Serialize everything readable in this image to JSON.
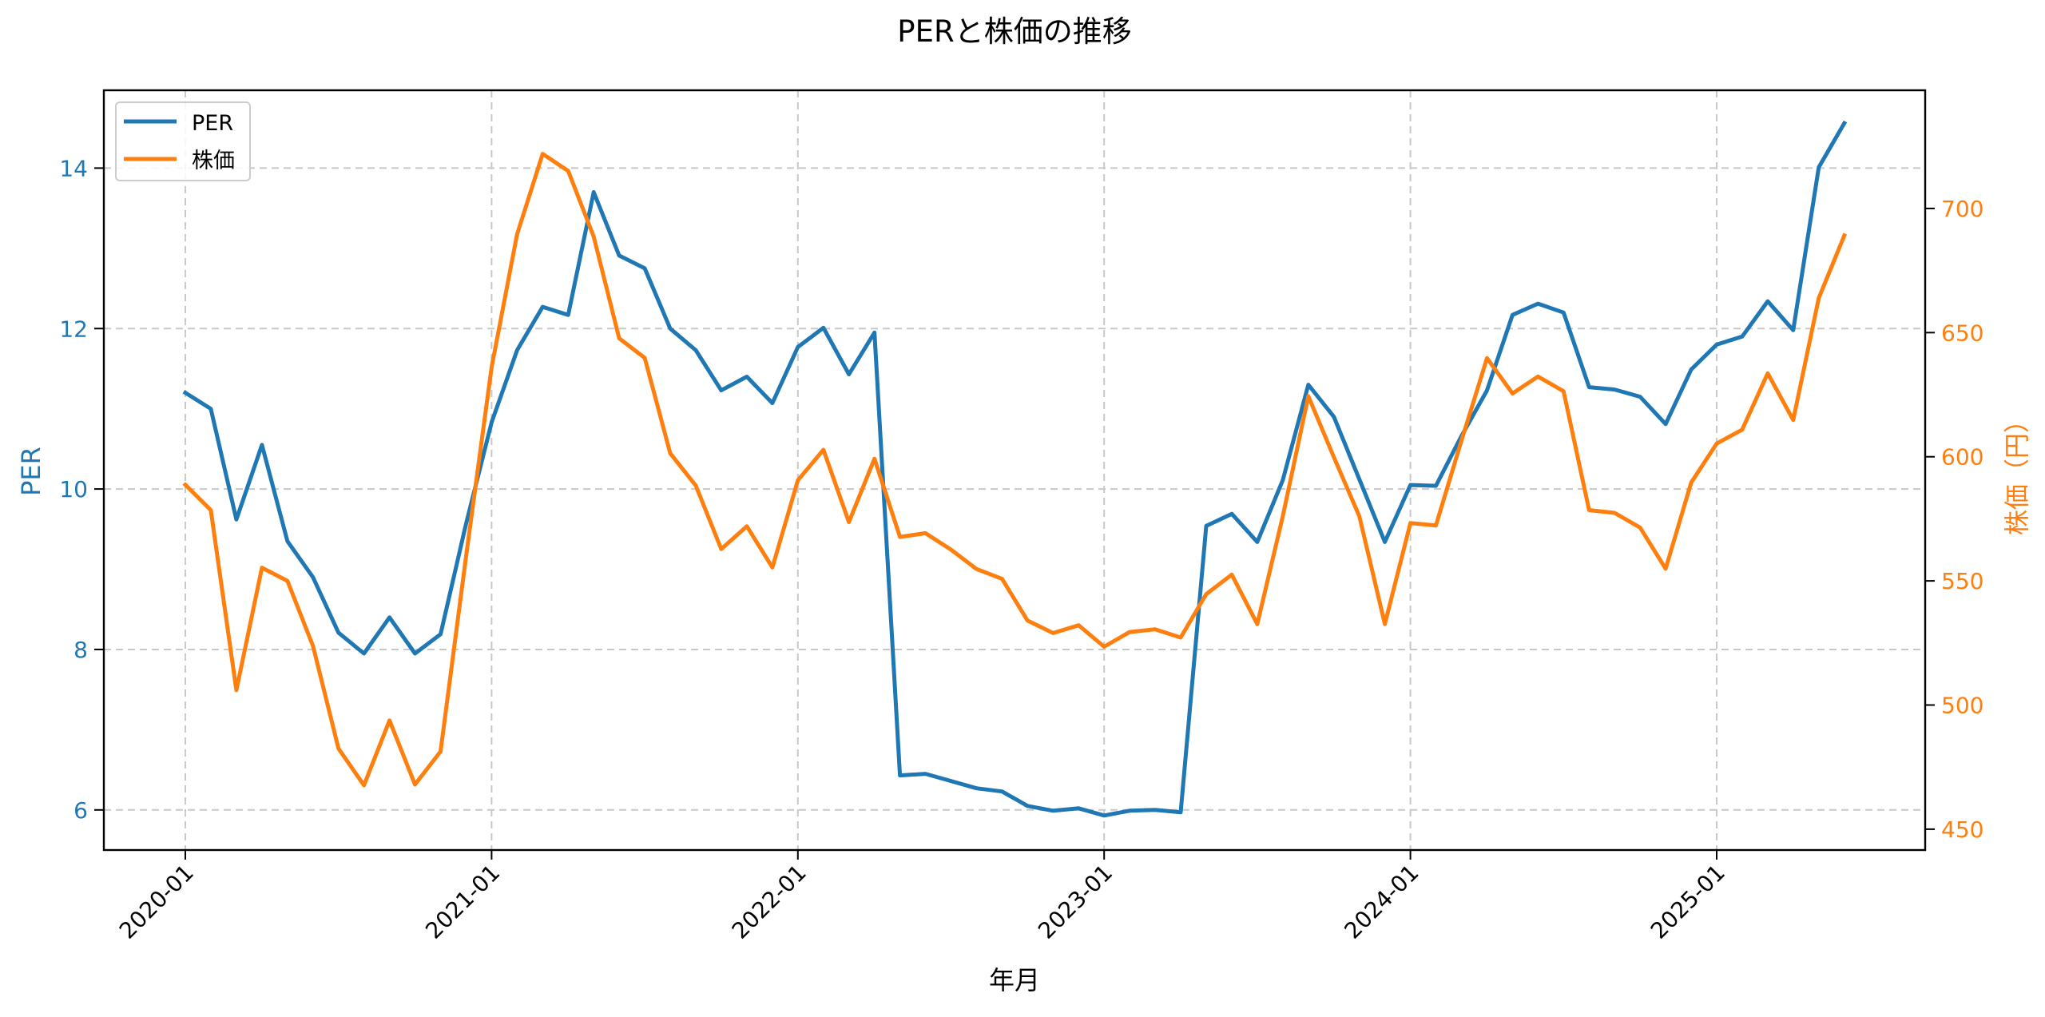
{
  "chart_data": {
    "type": "line",
    "title": "PERと株価の推移",
    "xlabel": "年月",
    "ylabel": "PER",
    "ylabel_right": "株価（円）",
    "x": [
      "2020-01",
      "2020-02",
      "2020-03",
      "2020-04",
      "2020-05",
      "2020-06",
      "2020-07",
      "2020-08",
      "2020-09",
      "2020-10",
      "2020-11",
      "2020-12",
      "2021-01",
      "2021-02",
      "2021-03",
      "2021-04",
      "2021-05",
      "2021-06",
      "2021-07",
      "2021-08",
      "2021-09",
      "2021-10",
      "2021-11",
      "2021-12",
      "2022-01",
      "2022-02",
      "2022-03",
      "2022-04",
      "2022-05",
      "2022-06",
      "2022-07",
      "2022-08",
      "2022-09",
      "2022-10",
      "2022-11",
      "2022-12",
      "2023-01",
      "2023-02",
      "2023-03",
      "2023-04",
      "2023-05",
      "2023-06",
      "2023-07",
      "2023-08",
      "2023-09",
      "2023-10",
      "2023-11",
      "2023-12",
      "2024-01",
      "2024-02",
      "2024-03",
      "2024-04",
      "2024-05",
      "2024-06",
      "2024-07",
      "2024-08",
      "2024-09",
      "2024-10",
      "2024-11",
      "2024-12",
      "2025-01",
      "2025-02",
      "2025-03",
      "2025-04",
      "2025-05",
      "2025-06"
    ],
    "series": [
      {
        "name": "PER",
        "axis": "left",
        "color": "#1f77b4",
        "values": [
          11.2,
          11.0,
          9.62,
          10.55,
          9.35,
          8.9,
          8.21,
          7.95,
          8.4,
          7.95,
          8.19,
          9.57,
          10.83,
          11.73,
          12.27,
          12.17,
          13.7,
          12.91,
          12.75,
          12.0,
          11.73,
          11.23,
          11.4,
          11.07,
          11.77,
          12.01,
          11.43,
          11.95,
          6.43,
          6.45,
          6.36,
          6.27,
          6.23,
          6.05,
          5.99,
          6.02,
          5.93,
          5.99,
          6.0,
          5.97,
          9.54,
          9.69,
          9.34,
          10.11,
          11.3,
          10.9,
          10.12,
          9.34,
          10.05,
          10.04,
          10.66,
          11.23,
          12.17,
          12.31,
          12.2,
          11.27,
          11.24,
          11.15,
          10.81,
          11.49,
          11.8,
          11.9,
          12.34,
          11.98,
          14.01,
          14.56
        ]
      },
      {
        "name": "株価",
        "axis": "right",
        "color": "#ff7f0e",
        "values": [
          588.7,
          578.5,
          506,
          555.3,
          550,
          523.8,
          482.5,
          467.7,
          493.8,
          468,
          481.3,
          560,
          636,
          689.6,
          722,
          715.1,
          688.7,
          647.7,
          639.8,
          601.4,
          588.4,
          562.8,
          572,
          555.4,
          590.5,
          602.8,
          573.7,
          599.2,
          567.7,
          569.2,
          562.6,
          554.8,
          550.8,
          534,
          529,
          532.1,
          523.5,
          529.4,
          530.5,
          527.2,
          544.7,
          552.5,
          532.6,
          576,
          624.4,
          599.8,
          576,
          532.6,
          573.3,
          572.3,
          606.5,
          639.7,
          625.5,
          632.3,
          626.4,
          578.5,
          577.4,
          571.5,
          554.9,
          589.6,
          605.3,
          610.9,
          633.6,
          614.8,
          663.9,
          689.1
        ]
      }
    ],
    "xticks": [
      "2020-01",
      "2021-01",
      "2022-01",
      "2023-01",
      "2024-01",
      "2025-01"
    ],
    "yticks_left": [
      6,
      8,
      10,
      12,
      14
    ],
    "yticks_right": [
      450,
      500,
      550,
      600,
      650,
      700
    ],
    "ylim_left": [
      5.5,
      14.97
    ],
    "ylim_right": [
      441.6,
      747.6
    ],
    "grid": true,
    "legend": {
      "position": "upper left",
      "entries": [
        "PER",
        "株価"
      ]
    },
    "colors": {
      "left_axis": "#1f77b4",
      "right_axis": "#ff7f0e",
      "grid": "#c8c8c8"
    }
  }
}
